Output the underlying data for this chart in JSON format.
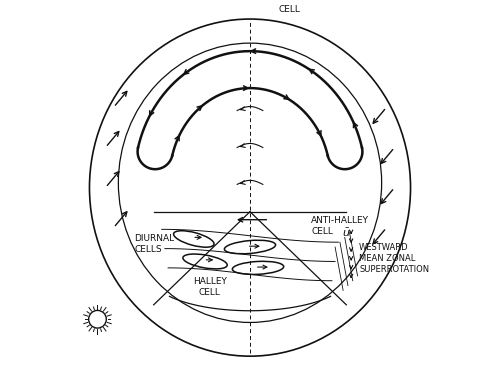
{
  "background_color": "#ffffff",
  "line_color": "#111111",
  "labels": {
    "cell_top": "CELL",
    "anti_halley": "ANTI-HALLEY\nCELL",
    "diurnal": "DIURNAL\nCELLS",
    "halley": "HALLEY\nCELL",
    "westward": "WESTWARD\nMEAN ZONAL\nSUPERROTATION",
    "u_bar": "$\\bar{u}$"
  },
  "figsize": [
    5.0,
    3.75
  ],
  "dpi": 100
}
